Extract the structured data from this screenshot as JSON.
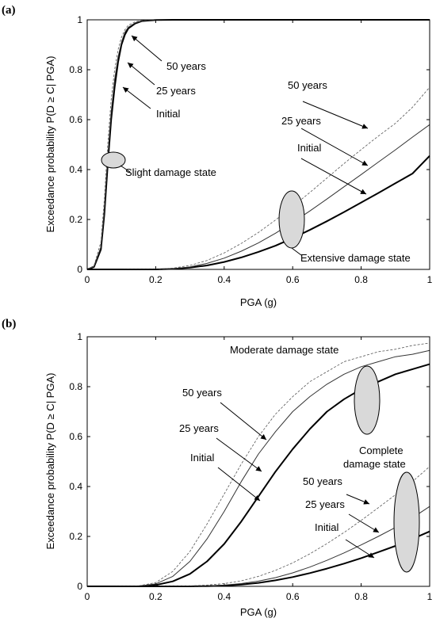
{
  "chart_data": [
    {
      "type": "line",
      "panel_label": "(a)",
      "xlabel": "PGA (g)",
      "ylabel": "Exceedance probability P(D ≥ C| PGA)",
      "xlim": [
        0,
        1
      ],
      "ylim": [
        0,
        1
      ],
      "x_ticks": [
        "0",
        "0.2",
        "0.4",
        "0.6",
        "0.8",
        "1"
      ],
      "y_ticks": [
        "0",
        "0.2",
        "0.4",
        "0.6",
        "0.8",
        "1"
      ],
      "grid": false,
      "series": [
        {
          "name": "Initial",
          "group": "Slight damage state",
          "style": "thick",
          "x": [
            0,
            0.02,
            0.04,
            0.05,
            0.06,
            0.07,
            0.08,
            0.09,
            0.1,
            0.11,
            0.12,
            0.14,
            0.16,
            0.2,
            0.25,
            0.3,
            0.4,
            1.0
          ],
          "y": [
            0,
            0.01,
            0.08,
            0.22,
            0.42,
            0.6,
            0.73,
            0.83,
            0.9,
            0.94,
            0.965,
            0.985,
            0.995,
            0.999,
            1,
            1,
            1,
            1
          ]
        },
        {
          "name": "25 years",
          "group": "Slight damage state",
          "style": "thin",
          "x": [
            0,
            0.02,
            0.04,
            0.05,
            0.06,
            0.07,
            0.08,
            0.09,
            0.1,
            0.11,
            0.12,
            0.14,
            0.16,
            0.2,
            0.25,
            0.3,
            0.4,
            1.0
          ],
          "y": [
            0,
            0.012,
            0.09,
            0.24,
            0.45,
            0.63,
            0.76,
            0.85,
            0.91,
            0.95,
            0.97,
            0.988,
            0.996,
            0.999,
            1,
            1,
            1,
            1
          ]
        },
        {
          "name": "50 years",
          "group": "Slight damage state",
          "style": "dashed",
          "x": [
            0,
            0.02,
            0.04,
            0.05,
            0.06,
            0.07,
            0.08,
            0.09,
            0.1,
            0.11,
            0.12,
            0.14,
            0.16,
            0.2,
            0.25,
            0.3,
            0.4,
            1.0
          ],
          "y": [
            0,
            0.015,
            0.11,
            0.28,
            0.5,
            0.68,
            0.8,
            0.88,
            0.93,
            0.96,
            0.978,
            0.992,
            0.997,
            1,
            1,
            1,
            1,
            1
          ]
        },
        {
          "name": "Initial",
          "group": "Extensive damage state",
          "style": "thick",
          "x": [
            0,
            0.2,
            0.25,
            0.3,
            0.35,
            0.4,
            0.45,
            0.5,
            0.55,
            0.6,
            0.65,
            0.7,
            0.75,
            0.8,
            0.85,
            0.9,
            0.95,
            1.0
          ],
          "y": [
            0,
            0,
            0.002,
            0.007,
            0.016,
            0.03,
            0.048,
            0.07,
            0.095,
            0.125,
            0.158,
            0.193,
            0.23,
            0.268,
            0.306,
            0.345,
            0.384,
            0.455
          ]
        },
        {
          "name": "25 years",
          "group": "Extensive damage state",
          "style": "thin",
          "x": [
            0,
            0.2,
            0.25,
            0.3,
            0.35,
            0.4,
            0.45,
            0.5,
            0.55,
            0.6,
            0.65,
            0.7,
            0.75,
            0.8,
            0.85,
            0.9,
            0.95,
            1.0
          ],
          "y": [
            0,
            0,
            0.003,
            0.01,
            0.024,
            0.045,
            0.073,
            0.106,
            0.145,
            0.188,
            0.234,
            0.282,
            0.331,
            0.38,
            0.43,
            0.479,
            0.53,
            0.58
          ]
        },
        {
          "name": "50 years",
          "group": "Extensive damage state",
          "style": "dashed",
          "x": [
            0,
            0.2,
            0.25,
            0.3,
            0.35,
            0.4,
            0.45,
            0.5,
            0.55,
            0.6,
            0.65,
            0.7,
            0.75,
            0.8,
            0.85,
            0.9,
            0.95,
            1.0
          ],
          "y": [
            0,
            0.001,
            0.005,
            0.016,
            0.036,
            0.066,
            0.104,
            0.148,
            0.198,
            0.252,
            0.308,
            0.366,
            0.424,
            0.48,
            0.534,
            0.585,
            0.65,
            0.73
          ]
        }
      ],
      "annotations": [
        "50 years",
        "25 years",
        "Initial",
        "Slight damage state",
        "50 years",
        "25 years",
        "Initial",
        "Extensive damage state"
      ]
    },
    {
      "type": "line",
      "panel_label": "(b)",
      "xlabel": "PGA (g)",
      "ylabel": "Exceedance probability P(D ≥ C| PGA)",
      "xlim": [
        0,
        1
      ],
      "ylim": [
        0,
        1
      ],
      "x_ticks": [
        "0",
        "0.2",
        "0.4",
        "0.6",
        "0.8",
        "1"
      ],
      "y_ticks": [
        "0",
        "0.2",
        "0.4",
        "0.6",
        "0.8",
        "1"
      ],
      "grid": false,
      "series": [
        {
          "name": "Initial",
          "group": "Moderate damage state",
          "style": "thick",
          "x": [
            0,
            0.15,
            0.2,
            0.25,
            0.3,
            0.35,
            0.4,
            0.45,
            0.5,
            0.55,
            0.6,
            0.65,
            0.7,
            0.75,
            0.8,
            0.85,
            0.9,
            0.95,
            1.0
          ],
          "y": [
            0,
            0,
            0.005,
            0.02,
            0.05,
            0.1,
            0.17,
            0.26,
            0.36,
            0.46,
            0.55,
            0.63,
            0.7,
            0.75,
            0.79,
            0.82,
            0.85,
            0.87,
            0.89
          ]
        },
        {
          "name": "25 years",
          "group": "Moderate damage state",
          "style": "thin",
          "x": [
            0,
            0.15,
            0.2,
            0.25,
            0.3,
            0.35,
            0.4,
            0.45,
            0.5,
            0.55,
            0.6,
            0.65,
            0.7,
            0.75,
            0.8,
            0.85,
            0.9,
            0.95,
            1.0
          ],
          "y": [
            0,
            0.001,
            0.01,
            0.04,
            0.1,
            0.19,
            0.3,
            0.42,
            0.53,
            0.62,
            0.7,
            0.76,
            0.81,
            0.85,
            0.88,
            0.9,
            0.92,
            0.93,
            0.945
          ]
        },
        {
          "name": "50 years",
          "group": "Moderate damage state",
          "style": "dashed",
          "x": [
            0,
            0.15,
            0.2,
            0.25,
            0.3,
            0.35,
            0.4,
            0.45,
            0.5,
            0.55,
            0.6,
            0.65,
            0.7,
            0.75,
            0.8,
            0.85,
            0.9,
            0.95,
            1.0
          ],
          "y": [
            0,
            0.002,
            0.015,
            0.06,
            0.14,
            0.25,
            0.37,
            0.49,
            0.6,
            0.69,
            0.76,
            0.82,
            0.86,
            0.9,
            0.92,
            0.94,
            0.95,
            0.965,
            0.975
          ]
        },
        {
          "name": "Initial",
          "group": "Complete damage state",
          "style": "thick",
          "x": [
            0,
            0.3,
            0.35,
            0.4,
            0.45,
            0.5,
            0.55,
            0.6,
            0.65,
            0.7,
            0.75,
            0.8,
            0.85,
            0.9,
            0.95,
            1.0
          ],
          "y": [
            0,
            0,
            0.001,
            0.003,
            0.007,
            0.014,
            0.024,
            0.037,
            0.053,
            0.071,
            0.091,
            0.113,
            0.137,
            0.162,
            0.19,
            0.22
          ]
        },
        {
          "name": "25 years",
          "group": "Complete damage state",
          "style": "thin",
          "x": [
            0,
            0.3,
            0.35,
            0.4,
            0.45,
            0.5,
            0.55,
            0.6,
            0.65,
            0.7,
            0.75,
            0.8,
            0.85,
            0.9,
            0.95,
            1.0
          ],
          "y": [
            0,
            0.001,
            0.002,
            0.005,
            0.011,
            0.021,
            0.035,
            0.054,
            0.077,
            0.104,
            0.134,
            0.166,
            0.2,
            0.236,
            0.275,
            0.32
          ]
        },
        {
          "name": "50 years",
          "group": "Complete damage state",
          "style": "dashed",
          "x": [
            0,
            0.3,
            0.35,
            0.4,
            0.45,
            0.5,
            0.55,
            0.6,
            0.65,
            0.7,
            0.75,
            0.8,
            0.85,
            0.9,
            0.95,
            1.0
          ],
          "y": [
            0,
            0.002,
            0.005,
            0.011,
            0.022,
            0.04,
            0.064,
            0.094,
            0.13,
            0.171,
            0.216,
            0.264,
            0.315,
            0.367,
            0.42,
            0.48
          ]
        }
      ],
      "annotations": [
        "Moderate damage state",
        "50 years",
        "25 years",
        "Initial",
        "Complete",
        "damage state",
        "50 years",
        "25 years",
        "Initial"
      ]
    }
  ]
}
